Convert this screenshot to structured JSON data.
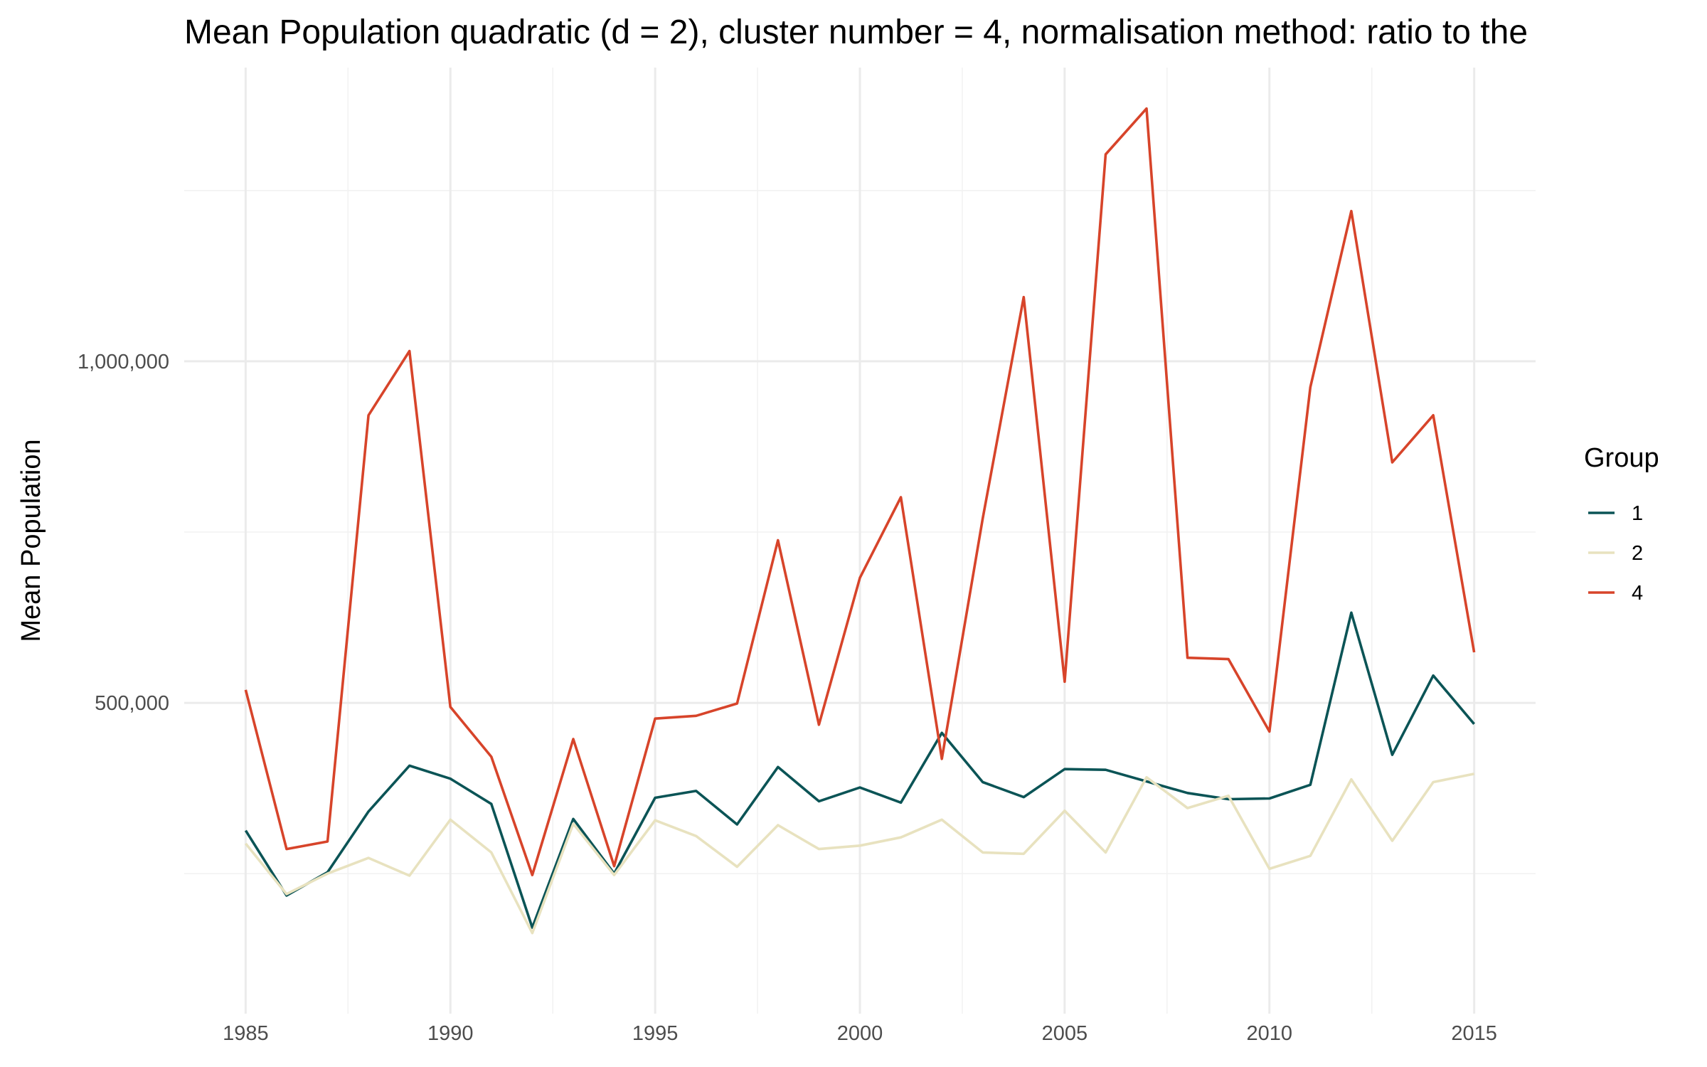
{
  "chart_data": {
    "type": "line",
    "title": "Mean Population quadratic (d = 2), cluster number = 4, normalisation method: ratio to the",
    "xlabel": "",
    "ylabel": "Mean Population",
    "xlim": [
      1983.5,
      2016.5
    ],
    "ylim": [
      45000,
      1430000
    ],
    "x_ticks": [
      1985,
      1990,
      1995,
      2000,
      2005,
      2010,
      2015
    ],
    "x_tick_labels": [
      "1985",
      "1990",
      "1995",
      "2000",
      "2005",
      "2010",
      "2015"
    ],
    "y_ticks": [
      500000,
      1000000
    ],
    "y_tick_labels": [
      "500,000",
      "1,000,000"
    ],
    "grid": true,
    "legend": {
      "title": "Group",
      "position": "right"
    },
    "x": [
      1985,
      1986,
      1987,
      1988,
      1989,
      1990,
      1991,
      1992,
      1993,
      1994,
      1995,
      1996,
      1997,
      1998,
      1999,
      2000,
      2001,
      2002,
      2003,
      2004,
      2005,
      2006,
      2007,
      2008,
      2009,
      2010,
      2011,
      2012,
      2013,
      2014,
      2015
    ],
    "series": [
      {
        "name": "1",
        "color": "#0b5456",
        "values": [
          313000,
          218000,
          252000,
          341000,
          408000,
          389000,
          352000,
          171000,
          330000,
          250000,
          361000,
          371000,
          322000,
          406000,
          356000,
          376000,
          354000,
          456000,
          384000,
          362000,
          403000,
          402000,
          385000,
          368000,
          359000,
          360000,
          380000,
          632000,
          424000,
          540000,
          469000
        ]
      },
      {
        "name": "2",
        "color": "#e8e2bf",
        "values": [
          294000,
          220000,
          250000,
          273000,
          247000,
          329000,
          281000,
          163000,
          323000,
          248000,
          328000,
          305000,
          260000,
          321000,
          286000,
          291000,
          303000,
          329000,
          281000,
          279000,
          342000,
          281000,
          391000,
          346000,
          364000,
          257000,
          276000,
          388000,
          298000,
          384000,
          396000
        ]
      },
      {
        "name": "4",
        "color": "#d7442a",
        "values": [
          519000,
          286000,
          297000,
          921000,
          1015000,
          494000,
          421000,
          248000,
          447000,
          261000,
          477000,
          481000,
          499000,
          738000,
          468000,
          683000,
          801000,
          418000,
          770000,
          1094000,
          531000,
          1303000,
          1370000,
          566000,
          564000,
          458000,
          962000,
          1220000,
          852000,
          921000,
          574000
        ]
      }
    ]
  }
}
